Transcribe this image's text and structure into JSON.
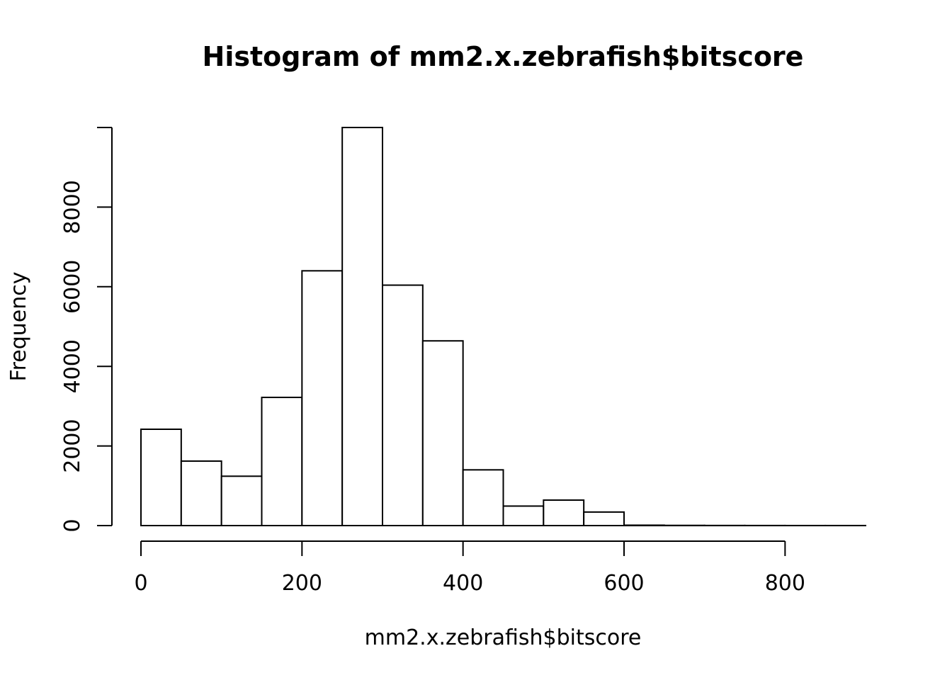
{
  "chart_data": {
    "type": "bar",
    "subtype": "histogram",
    "title": "Histogram of mm2.x.zebrafish$bitscore",
    "xlabel": "mm2.x.zebrafish$bitscore",
    "ylabel": "Frequency",
    "bin_edges": [
      0,
      50,
      100,
      150,
      200,
      250,
      300,
      350,
      400,
      450,
      500,
      550,
      600,
      650,
      700,
      750,
      800,
      850,
      900
    ],
    "values": [
      2420,
      1620,
      1240,
      3220,
      6400,
      10000,
      6040,
      4640,
      1400,
      490,
      640,
      340,
      10,
      5,
      3,
      2,
      1,
      1
    ],
    "xlim": [
      0,
      900
    ],
    "ylim": [
      0,
      10000
    ],
    "x_ticks": [
      0,
      200,
      400,
      600,
      800
    ],
    "x_tick_labels": [
      "0",
      "200",
      "400",
      "600",
      "800"
    ],
    "y_ticks": [
      0,
      2000,
      4000,
      6000,
      8000,
      10000
    ],
    "y_tick_labels": [
      "0",
      "2000",
      "4000",
      "6000",
      "8000",
      ""
    ],
    "grid": false,
    "legend": "none",
    "colors": {
      "bar_fill": "#ffffff",
      "bar_stroke": "#000000",
      "text": "#000000"
    }
  }
}
